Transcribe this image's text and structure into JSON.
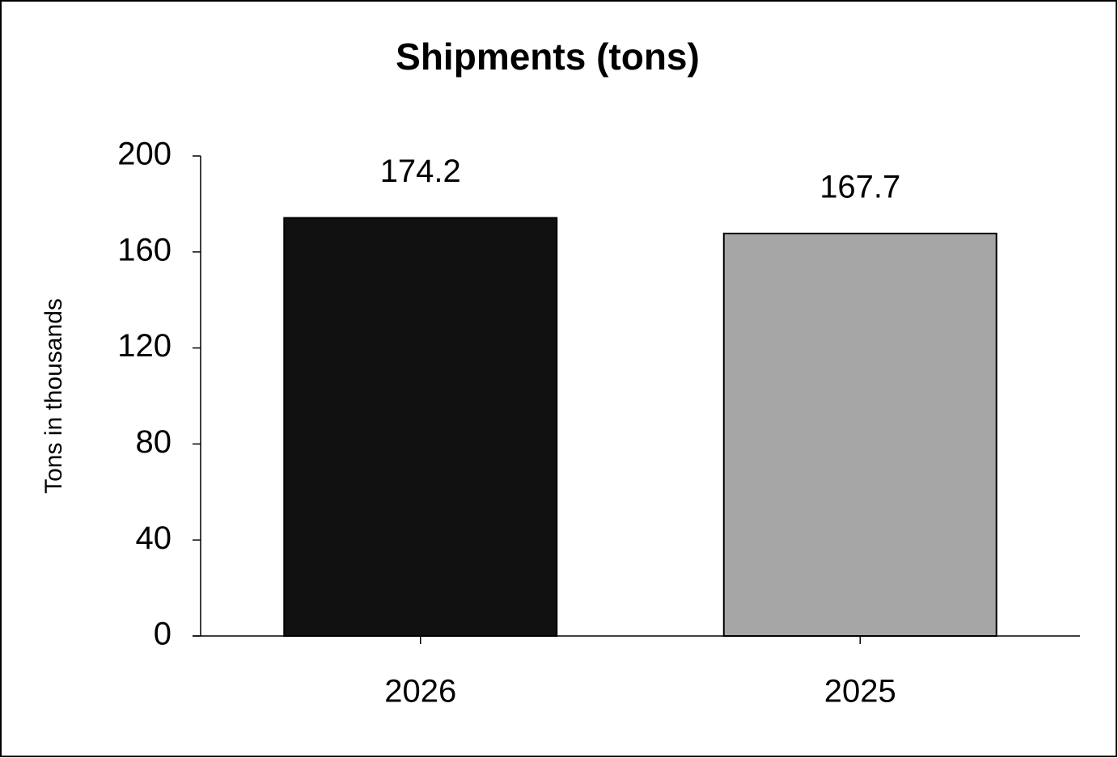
{
  "chart_data": {
    "type": "bar",
    "title": "Shipments (tons)",
    "y_label": "Tons in thousands",
    "categories": [
      "2026",
      "2025"
    ],
    "values": [
      174.2,
      167.7
    ],
    "colors": [
      "#111111",
      "#a6a6a6"
    ],
    "ylim": [
      0,
      200
    ],
    "yticks": [
      0,
      40,
      80,
      120,
      160,
      200
    ],
    "grid": false
  }
}
